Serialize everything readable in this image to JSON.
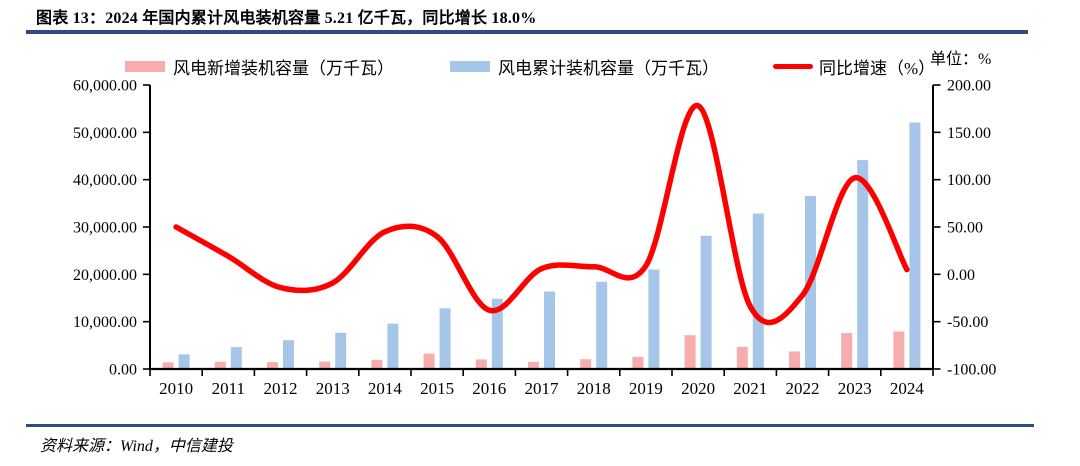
{
  "title": "图表 13：2024 年国内累计风电装机容量 5.21 亿千瓦，同比增长 18.0%",
  "unit_label": "单位：%",
  "source": "资料来源：Wind，中信建投",
  "colors": {
    "rule_navy": "#2C4D7E",
    "bar_new_pink": "#F7ADAD",
    "bar_cumulative_blue": "#A5C6E8",
    "line_red": "#FF0000",
    "axis_black": "#000000"
  },
  "legend": [
    {
      "label": "风电新增装机容量（万千瓦）",
      "color": "#F7ADAD",
      "type": "bar"
    },
    {
      "label": "风电累计装机容量（万千瓦）",
      "color": "#A5C6E8",
      "type": "bar"
    },
    {
      "label": "同比增速（%）",
      "color": "#FF0000",
      "type": "line"
    }
  ],
  "chart_data": {
    "type": "bar",
    "subtype": "grouped-bars-with-line",
    "title": "2024 年国内累计风电装机容量 5.21 亿千瓦，同比增长 18.0%",
    "categories": [
      "2010",
      "2011",
      "2012",
      "2013",
      "2014",
      "2015",
      "2016",
      "2017",
      "2018",
      "2019",
      "2020",
      "2021",
      "2022",
      "2023",
      "2024"
    ],
    "series": [
      {
        "name": "风电新增装机容量（万千瓦）",
        "type": "bar",
        "axis": "left",
        "color": "#F7ADAD",
        "values": [
          1399,
          1523,
          1460,
          1569,
          1929,
          3249,
          2034,
          1503,
          2059,
          2579,
          7148,
          4695,
          3696,
          7590,
          7934
        ]
      },
      {
        "name": "风电累计装机容量（万千瓦）",
        "type": "bar",
        "axis": "left",
        "color": "#A5C6E8",
        "values": [
          3100,
          4623,
          6083,
          7652,
          9581,
          12830,
          14864,
          16367,
          18426,
          21005,
          28153,
          32848,
          36544,
          44134,
          52068
        ]
      },
      {
        "name": "同比增速（%）",
        "type": "line",
        "axis": "right",
        "color": "#FF0000",
        "smooth": true,
        "values": [
          50,
          19,
          -14,
          -9,
          45,
          40,
          -38,
          6,
          8,
          9,
          178,
          -34,
          -22,
          102,
          5
        ]
      }
    ],
    "left_axis": {
      "min": 0,
      "max": 60000,
      "step": 10000,
      "tick_labels": [
        "0.00",
        "10,000.00",
        "20,000.00",
        "30,000.00",
        "40,000.00",
        "50,000.00",
        "60,000.00"
      ]
    },
    "right_axis": {
      "min": -100,
      "max": 200,
      "step": 50,
      "tick_labels": [
        "-100.00",
        "-50.00",
        "0.00",
        "50.00",
        "100.00",
        "150.00",
        "200.00"
      ]
    },
    "grid": false,
    "legend_position": "top"
  }
}
